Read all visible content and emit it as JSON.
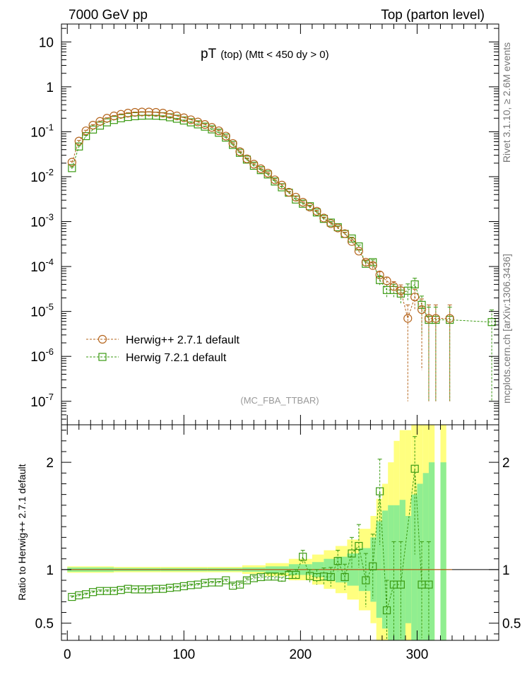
{
  "header": {
    "left": "7000 GeV pp",
    "right": "Top (parton level)",
    "title_main": "pT",
    "title_sub": "(top) (Mtt < 450 dy > 0)",
    "analysis": "(MC_FBA_TTBAR)",
    "side_rivet": "Rivet 3.1.10, ≥ 2.6M events",
    "side_mcplots": "mcplots.cern.ch [arXiv:1306.3436]"
  },
  "chart_data": [
    {
      "type": "scatter",
      "panel": "main",
      "yscale": "log",
      "xlim": [
        -5,
        370
      ],
      "ylim": [
        3e-08,
        25
      ],
      "x_ticks": [
        0,
        100,
        200,
        300
      ],
      "y_ticks": [
        {
          "value": 1e-07,
          "base": "10",
          "exp": "-7"
        },
        {
          "value": 1e-06,
          "base": "10",
          "exp": "-6"
        },
        {
          "value": 1e-05,
          "base": "10",
          "exp": "-5"
        },
        {
          "value": 0.0001,
          "base": "10",
          "exp": "-4"
        },
        {
          "value": 0.001,
          "base": "10",
          "exp": "-3"
        },
        {
          "value": 0.01,
          "base": "10",
          "exp": "-2"
        },
        {
          "value": 0.1,
          "base": "10",
          "exp": "-1"
        },
        {
          "value": 1,
          "base": "1",
          "exp": ""
        },
        {
          "value": 10,
          "base": "10",
          "exp": ""
        }
      ],
      "legend_position": "bottom-left",
      "series": [
        {
          "name": "Herwig++ 2.7.1 default",
          "marker": "circle",
          "color": "#b5651d",
          "x": [
            4,
            10,
            16,
            22,
            28,
            34,
            40,
            46,
            52,
            58,
            64,
            70,
            76,
            82,
            88,
            94,
            100,
            106,
            112,
            118,
            124,
            130,
            136,
            142,
            148,
            154,
            160,
            166,
            172,
            178,
            184,
            190,
            196,
            202,
            208,
            214,
            220,
            226,
            232,
            238,
            244,
            250,
            256,
            262,
            268,
            274,
            280,
            286,
            292,
            298,
            304,
            310,
            316,
            328
          ],
          "y": [
            0.021,
            0.062,
            0.105,
            0.14,
            0.17,
            0.2,
            0.225,
            0.245,
            0.26,
            0.27,
            0.275,
            0.275,
            0.27,
            0.26,
            0.245,
            0.225,
            0.205,
            0.185,
            0.165,
            0.145,
            0.125,
            0.105,
            0.08,
            0.055,
            0.036,
            0.025,
            0.019,
            0.015,
            0.012,
            0.0085,
            0.0065,
            0.0045,
            0.0035,
            0.0027,
            0.0021,
            0.0017,
            0.0012,
            0.0009,
            0.00072,
            0.00054,
            0.00036,
            0.00022,
            0.000125,
            0.000105,
            6.5e-05,
            4.8e-05,
            3.6e-05,
            2.9e-05,
            7e-06,
            2.1e-05,
            1.1e-05,
            7e-06,
            7e-06,
            7e-06
          ],
          "err_low": [
            0.001,
            0.002,
            0.003,
            0.004,
            0.004,
            0.005,
            0.005,
            0.005,
            0.005,
            0.005,
            0.005,
            0.005,
            0.005,
            0.005,
            0.005,
            0.005,
            0.004,
            0.004,
            0.004,
            0.003,
            0.003,
            0.003,
            0.002,
            0.002,
            0.001,
            0.001,
            0.0008,
            0.0006,
            0.0005,
            0.0004,
            0.0003,
            0.0002,
            0.00015,
            0.00012,
            0.0001,
            8e-05,
            6e-05,
            5e-05,
            5e-05,
            4e-05,
            3e-05,
            2e-05,
            1.5e-05,
            1.5e-05,
            1.2e-05,
            1e-05,
            1e-05,
            1e-05,
            6.9e-06,
            1e-05,
            1.05e-05,
            6.9e-06,
            6.9e-06,
            6.9e-06
          ],
          "err_high": [
            0.001,
            0.002,
            0.003,
            0.004,
            0.004,
            0.005,
            0.005,
            0.005,
            0.005,
            0.005,
            0.005,
            0.005,
            0.005,
            0.005,
            0.005,
            0.005,
            0.004,
            0.004,
            0.004,
            0.003,
            0.003,
            0.003,
            0.002,
            0.002,
            0.001,
            0.001,
            0.0008,
            0.0006,
            0.0005,
            0.0004,
            0.0003,
            0.0002,
            0.00015,
            0.00012,
            0.0001,
            8e-05,
            6e-05,
            5e-05,
            5e-05,
            4e-05,
            3e-05,
            2e-05,
            1.5e-05,
            1.5e-05,
            1.2e-05,
            1e-05,
            1e-05,
            1e-05,
            7e-06,
            1e-05,
            8e-06,
            7e-06,
            7e-06,
            7e-06
          ]
        },
        {
          "name": "Herwig 7.2.1 default",
          "marker": "square",
          "color": "#3a9a12",
          "x": [
            4,
            10,
            16,
            22,
            28,
            34,
            40,
            46,
            52,
            58,
            64,
            70,
            76,
            82,
            88,
            94,
            100,
            106,
            112,
            118,
            124,
            130,
            136,
            142,
            148,
            154,
            160,
            166,
            172,
            178,
            184,
            190,
            196,
            202,
            208,
            214,
            220,
            226,
            232,
            238,
            244,
            250,
            256,
            262,
            268,
            274,
            280,
            286,
            292,
            298,
            304,
            310,
            316,
            328,
            364
          ],
          "y": [
            0.0155,
            0.047,
            0.08,
            0.112,
            0.137,
            0.162,
            0.183,
            0.2,
            0.213,
            0.222,
            0.228,
            0.23,
            0.228,
            0.222,
            0.21,
            0.195,
            0.178,
            0.162,
            0.146,
            0.13,
            0.113,
            0.095,
            0.074,
            0.051,
            0.034,
            0.024,
            0.0175,
            0.014,
            0.0112,
            0.0078,
            0.0058,
            0.0044,
            0.0031,
            0.0025,
            0.0022,
            0.0016,
            0.00115,
            0.00095,
            0.00075,
            0.00053,
            0.00042,
            0.00028,
            0.000115,
            0.000125,
            5e-05,
            3e-05,
            3e-05,
            2.5e-05,
            2.9e-05,
            4e-05,
            1.4e-05,
            6.5e-06,
            6.5e-06,
            6.5e-06,
            5.8e-06
          ],
          "err_low": [
            0.001,
            0.002,
            0.003,
            0.003,
            0.004,
            0.004,
            0.004,
            0.005,
            0.005,
            0.005,
            0.005,
            0.005,
            0.005,
            0.005,
            0.005,
            0.004,
            0.004,
            0.004,
            0.003,
            0.003,
            0.003,
            0.003,
            0.002,
            0.002,
            0.001,
            0.001,
            0.0008,
            0.0006,
            0.0005,
            0.0004,
            0.0003,
            0.0002,
            0.00015,
            0.00012,
            0.0001,
            8e-05,
            6e-05,
            5e-05,
            5e-05,
            4e-05,
            3e-05,
            2e-05,
            1.5e-05,
            1.5e-05,
            1.2e-05,
            1e-05,
            1e-05,
            1e-05,
            1.2e-05,
            2e-05,
            1.1e-05,
            6.4e-06,
            6.4e-06,
            6.4e-06,
            5.7e-06
          ],
          "err_high": [
            0.001,
            0.002,
            0.003,
            0.003,
            0.004,
            0.004,
            0.004,
            0.005,
            0.005,
            0.005,
            0.005,
            0.005,
            0.005,
            0.005,
            0.005,
            0.004,
            0.004,
            0.004,
            0.003,
            0.003,
            0.003,
            0.003,
            0.002,
            0.002,
            0.001,
            0.001,
            0.0008,
            0.0006,
            0.0005,
            0.0004,
            0.0003,
            0.0002,
            0.00015,
            0.00012,
            0.0001,
            8e-05,
            6e-05,
            5e-05,
            5e-05,
            4e-05,
            3e-05,
            2e-05,
            1.5e-05,
            1.5e-05,
            1.2e-05,
            1e-05,
            1e-05,
            1e-05,
            1.2e-05,
            1.5e-05,
            8e-06,
            6e-06,
            6e-06,
            6e-06,
            5e-06
          ]
        }
      ]
    },
    {
      "type": "scatter",
      "panel": "ratio",
      "ylabel": "Ratio to Herwig++ 2.7.1 default",
      "xlim": [
        -5,
        370
      ],
      "ylim": [
        0.34,
        2.35
      ],
      "x_ticks": [
        0,
        100,
        200,
        300
      ],
      "y_ticks": [
        0.5,
        1,
        2
      ],
      "y_tick_labels": [
        "0.5",
        "1",
        "2"
      ],
      "reference_line": 1,
      "band_colors": {
        "inner": "#90ee90",
        "outer": "#ffff7f"
      },
      "bands": {
        "x_edges": [
          0,
          40,
          80,
          120,
          150,
          170,
          190,
          210,
          220,
          230,
          240,
          250,
          260,
          265,
          270,
          275,
          280,
          285,
          290,
          295,
          300,
          305,
          310,
          315,
          320,
          325,
          331
        ],
        "inner_low": [
          0.98,
          0.985,
          0.985,
          0.985,
          0.98,
          0.97,
          0.95,
          0.93,
          0.9,
          0.88,
          0.85,
          0.8,
          0.7,
          0.55,
          0.45,
          0.34,
          0.34,
          0.34,
          0.5,
          0.34,
          0.34,
          0.34,
          0.34,
          1.0,
          0.34,
          1.0
        ],
        "inner_high": [
          1.02,
          1.015,
          1.015,
          1.015,
          1.02,
          1.03,
          1.05,
          1.07,
          1.1,
          1.12,
          1.15,
          1.2,
          1.3,
          1.45,
          1.55,
          1.6,
          1.6,
          1.65,
          1.5,
          1.7,
          1.8,
          1.9,
          2.0,
          1.0,
          2.0,
          1.0
        ],
        "outer_low": [
          0.97,
          0.975,
          0.975,
          0.975,
          0.96,
          0.94,
          0.9,
          0.86,
          0.82,
          0.78,
          0.72,
          0.62,
          0.5,
          0.34,
          0.34,
          0.34,
          0.34,
          0.34,
          0.34,
          0.34,
          0.34,
          0.34,
          0.34,
          1.0,
          0.34,
          1.0
        ],
        "outer_high": [
          1.03,
          1.025,
          1.025,
          1.025,
          1.04,
          1.06,
          1.1,
          1.14,
          1.18,
          1.22,
          1.28,
          1.38,
          1.5,
          1.66,
          1.8,
          2.0,
          2.2,
          2.3,
          2.3,
          2.35,
          2.35,
          2.35,
          2.35,
          1.0,
          2.35,
          1.0
        ]
      },
      "series": [
        {
          "name": "Herwig 7.2.1 default",
          "marker": "square",
          "color": "#3a9a12",
          "x": [
            4,
            10,
            16,
            22,
            28,
            34,
            40,
            46,
            52,
            58,
            64,
            70,
            76,
            82,
            88,
            94,
            100,
            106,
            112,
            118,
            124,
            130,
            136,
            142,
            148,
            154,
            160,
            166,
            172,
            178,
            184,
            190,
            196,
            202,
            208,
            214,
            220,
            226,
            232,
            238,
            244,
            250,
            256,
            262,
            268,
            274,
            280,
            286,
            298,
            304,
            310
          ],
          "y": [
            0.745,
            0.76,
            0.77,
            0.79,
            0.8,
            0.8,
            0.8,
            0.81,
            0.82,
            0.815,
            0.815,
            0.815,
            0.82,
            0.82,
            0.83,
            0.835,
            0.845,
            0.855,
            0.86,
            0.875,
            0.88,
            0.88,
            0.9,
            0.85,
            0.86,
            0.9,
            0.92,
            0.93,
            0.935,
            0.935,
            0.925,
            0.95,
            0.95,
            1.12,
            0.94,
            0.93,
            0.935,
            0.93,
            1.08,
            0.93,
            1.15,
            1.22,
            0.9,
            1.03,
            1.73,
            0.62,
            0.86,
            0.86,
            1.94,
            0.86,
            0.86
          ],
          "err_low": [
            0.01,
            0.01,
            0.01,
            0.01,
            0.01,
            0.01,
            0.01,
            0.01,
            0.01,
            0.01,
            0.01,
            0.01,
            0.01,
            0.01,
            0.01,
            0.01,
            0.01,
            0.01,
            0.01,
            0.01,
            0.01,
            0.01,
            0.01,
            0.02,
            0.02,
            0.02,
            0.02,
            0.02,
            0.03,
            0.03,
            0.04,
            0.04,
            0.05,
            0.06,
            0.06,
            0.07,
            0.08,
            0.09,
            0.1,
            0.12,
            0.15,
            0.2,
            0.25,
            0.3,
            0.5,
            0.28,
            0.5,
            0.5,
            0.8,
            0.5,
            0.5
          ],
          "err_high": [
            0.01,
            0.01,
            0.01,
            0.01,
            0.01,
            0.01,
            0.01,
            0.01,
            0.01,
            0.01,
            0.01,
            0.01,
            0.01,
            0.01,
            0.01,
            0.01,
            0.01,
            0.01,
            0.01,
            0.01,
            0.01,
            0.01,
            0.01,
            0.02,
            0.02,
            0.02,
            0.02,
            0.02,
            0.03,
            0.03,
            0.04,
            0.04,
            0.05,
            0.06,
            0.06,
            0.07,
            0.08,
            0.09,
            0.1,
            0.12,
            0.15,
            0.2,
            0.25,
            0.3,
            0.3,
            0.28,
            0.4,
            0.4,
            0.3,
            0.4,
            0.4
          ]
        }
      ]
    }
  ]
}
